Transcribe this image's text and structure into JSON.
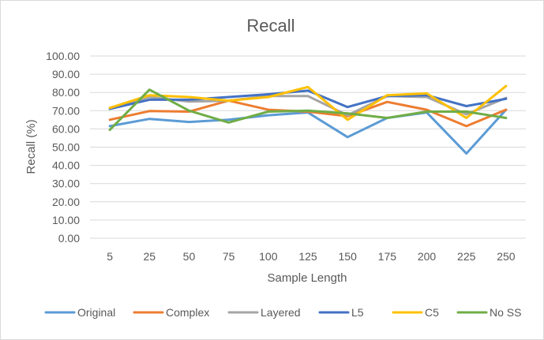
{
  "chart_data": {
    "type": "line",
    "title": "Recall",
    "xlabel": "Sample Length",
    "ylabel": "Recall (%)",
    "categories": [
      "5",
      "25",
      "50",
      "75",
      "100",
      "125",
      "150",
      "175",
      "200",
      "225",
      "250"
    ],
    "y_ticks": [
      "0.00",
      "10.00",
      "20.00",
      "30.00",
      "40.00",
      "50.00",
      "60.00",
      "70.00",
      "80.00",
      "90.00",
      "100.00"
    ],
    "ylim": [
      0,
      100
    ],
    "grid": true,
    "legend_position": "bottom",
    "series": [
      {
        "name": "Original",
        "color": "#5B9BD5",
        "values": [
          61.5,
          65.5,
          63.8,
          65.0,
          67.5,
          69.0,
          55.5,
          66.0,
          69.0,
          46.5,
          70.5
        ]
      },
      {
        "name": "Complex",
        "color": "#ED7D31",
        "values": [
          65.0,
          69.8,
          69.5,
          75.5,
          70.5,
          69.5,
          67.0,
          74.8,
          70.5,
          61.5,
          70.5
        ]
      },
      {
        "name": "Layered",
        "color": "#A5A5A5",
        "values": [
          71.5,
          77.5,
          75.0,
          75.5,
          78.0,
          78.0,
          67.5,
          78.0,
          77.5,
          68.0,
          77.0
        ]
      },
      {
        "name": "L5",
        "color": "#4472C4",
        "values": [
          71.0,
          76.0,
          76.0,
          77.5,
          79.0,
          81.0,
          72.0,
          78.0,
          78.5,
          72.5,
          76.5
        ]
      },
      {
        "name": "C5",
        "color": "#FFC000",
        "values": [
          71.5,
          78.5,
          77.5,
          75.5,
          77.5,
          83.0,
          65.0,
          78.5,
          79.5,
          66.0,
          83.5
        ]
      },
      {
        "name": "No SS",
        "color": "#70AD47",
        "values": [
          59.5,
          81.5,
          70.0,
          63.5,
          69.5,
          70.0,
          68.5,
          66.0,
          69.5,
          69.5,
          66.0
        ]
      }
    ]
  }
}
